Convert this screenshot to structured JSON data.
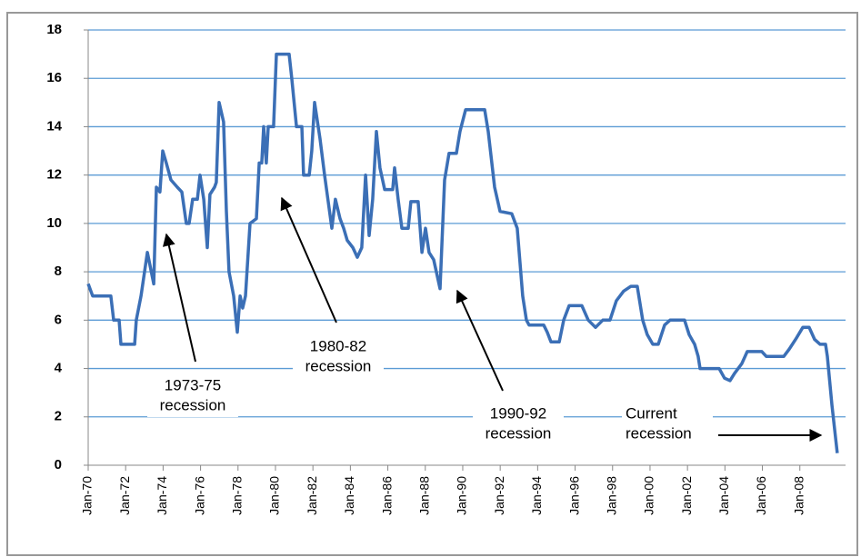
{
  "chart_data": {
    "type": "line",
    "x": [
      1970.0,
      1970.24,
      1971.21,
      1971.36,
      1971.65,
      1971.75,
      1972.48,
      1972.57,
      1972.82,
      1973.16,
      1973.5,
      1973.64,
      1973.83,
      1973.98,
      1974.17,
      1974.42,
      1974.76,
      1975.0,
      1975.24,
      1975.39,
      1975.58,
      1975.83,
      1975.97,
      1976.17,
      1976.36,
      1976.5,
      1976.75,
      1976.84,
      1976.99,
      1977.23,
      1977.38,
      1977.52,
      1977.77,
      1977.96,
      1978.11,
      1978.25,
      1978.4,
      1978.64,
      1978.98,
      1979.13,
      1979.27,
      1979.37,
      1979.51,
      1979.61,
      1979.9,
      1980.05,
      1980.73,
      1980.87,
      1981.12,
      1981.41,
      1981.5,
      1981.8,
      1981.94,
      1982.09,
      1982.38,
      1982.62,
      1983.01,
      1983.2,
      1983.45,
      1983.64,
      1983.83,
      1984.13,
      1984.37,
      1984.61,
      1984.81,
      1985.0,
      1985.19,
      1985.39,
      1985.58,
      1985.83,
      1986.26,
      1986.36,
      1986.55,
      1986.75,
      1987.09,
      1987.23,
      1987.62,
      1987.82,
      1988.01,
      1988.2,
      1988.45,
      1988.79,
      1989.03,
      1989.27,
      1989.66,
      1989.85,
      1990.15,
      1991.17,
      1991.36,
      1991.7,
      1991.99,
      1992.62,
      1992.91,
      1993.2,
      1993.4,
      1993.54,
      1994.32,
      1994.51,
      1994.71,
      1995.15,
      1995.39,
      1995.68,
      1996.36,
      1996.7,
      1997.09,
      1997.48,
      1997.86,
      1998.2,
      1998.59,
      1998.98,
      1999.32,
      1999.61,
      1999.85,
      2000.15,
      2000.44,
      2000.78,
      2001.07,
      2001.84,
      2002.09,
      2002.38,
      2002.57,
      2002.67,
      2003.69,
      2003.98,
      2004.27,
      2004.51,
      2004.9,
      2005.19,
      2005.97,
      2006.21,
      2007.14,
      2007.43,
      2007.77,
      2008.16,
      2008.5,
      2008.79,
      2009.08,
      2009.37,
      2009.47,
      2009.71,
      2010.0
    ],
    "series": [
      {
        "color": "#3b6fb6",
        "values": [
          7.5,
          7.0,
          7.0,
          6.0,
          6.0,
          5.0,
          5.0,
          6.0,
          7.0,
          8.8,
          7.5,
          11.5,
          11.3,
          13.0,
          12.5,
          11.8,
          11.5,
          11.3,
          10.0,
          10.0,
          11.0,
          11.0,
          12.0,
          11.0,
          9.0,
          11.2,
          11.5,
          11.7,
          15.0,
          14.2,
          10.5,
          8.0,
          7.0,
          5.5,
          7.0,
          6.5,
          7.0,
          10.0,
          10.2,
          12.5,
          12.5,
          14.0,
          12.5,
          14.0,
          14.0,
          17.0,
          17.0,
          16.0,
          14.0,
          14.0,
          12.0,
          12.0,
          13.0,
          15.0,
          13.5,
          12.0,
          9.8,
          11.0,
          10.2,
          9.8,
          9.3,
          9.0,
          8.6,
          9.0,
          12.0,
          9.5,
          11.0,
          13.8,
          12.3,
          11.4,
          11.4,
          12.3,
          11.0,
          9.8,
          9.8,
          10.9,
          10.9,
          8.8,
          9.8,
          8.8,
          8.5,
          7.3,
          11.8,
          12.9,
          12.9,
          13.8,
          14.7,
          14.7,
          13.8,
          11.5,
          10.5,
          10.4,
          9.8,
          7.0,
          6.0,
          5.8,
          5.8,
          5.5,
          5.1,
          5.1,
          6.0,
          6.6,
          6.6,
          6.0,
          5.7,
          6.0,
          6.0,
          6.8,
          7.2,
          7.4,
          7.4,
          6.0,
          5.4,
          5.0,
          5.0,
          5.8,
          6.0,
          6.0,
          5.4,
          5.0,
          4.5,
          4.0,
          4.0,
          3.6,
          3.5,
          3.8,
          4.2,
          4.7,
          4.7,
          4.5,
          4.5,
          4.8,
          5.2,
          5.7,
          5.7,
          5.2,
          5.0,
          5.0,
          4.5,
          2.5,
          0.5
        ]
      }
    ],
    "xlim": [
      1970,
      2010.44
    ],
    "xticks": [
      {
        "value": 1970,
        "label": "Jan-70"
      },
      {
        "value": 1972,
        "label": "Jan-72"
      },
      {
        "value": 1974,
        "label": "Jan-74"
      },
      {
        "value": 1976,
        "label": "Jan-76"
      },
      {
        "value": 1978,
        "label": "Jan-78"
      },
      {
        "value": 1980,
        "label": "Jan-80"
      },
      {
        "value": 1982,
        "label": "Jan-82"
      },
      {
        "value": 1984,
        "label": "Jan-84"
      },
      {
        "value": 1986,
        "label": "Jan-86"
      },
      {
        "value": 1988,
        "label": "Jan-88"
      },
      {
        "value": 1990,
        "label": "Jan-90"
      },
      {
        "value": 1992,
        "label": "Jan-92"
      },
      {
        "value": 1994,
        "label": "Jan-94"
      },
      {
        "value": 1996,
        "label": "Jan-96"
      },
      {
        "value": 1998,
        "label": "Jan-98"
      },
      {
        "value": 2000,
        "label": "Jan-00"
      },
      {
        "value": 2002,
        "label": "Jan-02"
      },
      {
        "value": 2004,
        "label": "Jan-04"
      },
      {
        "value": 2006,
        "label": "Jan-06"
      },
      {
        "value": 2008,
        "label": "Jan-08"
      }
    ],
    "ylim": [
      0,
      18
    ],
    "yticks": [
      0,
      2,
      4,
      6,
      8,
      10,
      12,
      14,
      16,
      18
    ],
    "grid": true,
    "grid_color": "#5b9bd5",
    "annotations": [
      {
        "lines": [
          "1973-75",
          "recession"
        ]
      },
      {
        "lines": [
          "1980-82",
          "recession"
        ]
      },
      {
        "lines": [
          "1990-92",
          "recession"
        ]
      },
      {
        "lines": [
          "Current",
          "recession"
        ]
      }
    ]
  }
}
